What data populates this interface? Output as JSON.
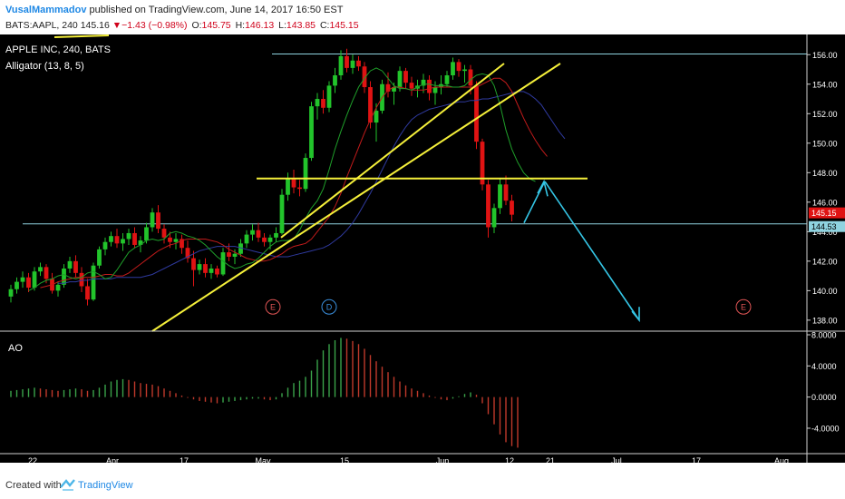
{
  "header": {
    "author": "VusalMammadov",
    "published": "published on TradingView.com, June 14, 2017 16:50 EST",
    "symbol_line": "BATS:AAPL, 240",
    "last": "145.16",
    "change": "▼−1.43 (−0.98%)",
    "o_label": "O:",
    "o_value": "145.75",
    "h_label": "H:",
    "h_value": "146.13",
    "l_label": "L:",
    "l_value": "143.85",
    "c_label": "C:",
    "c_value": "145.15"
  },
  "footer": {
    "created_with": "Created with",
    "brand": "TradingView"
  },
  "colors": {
    "up": "#22c42b",
    "down": "#e01313",
    "alligator_jaw": "#2f3a9f",
    "alligator_teeth": "#c21b1b",
    "alligator_lips": "#1f9e2a",
    "trendline": "#f5f03a",
    "hline": "#8fd3e0",
    "arrow": "#35c6e6",
    "ao_up": "#3aa34a",
    "ao_down": "#c0392b"
  },
  "chart_data": [
    {
      "type": "candlestick",
      "title": "APPLE INC, 240, BATS",
      "indicator": "Alligator (13, 8, 5)",
      "ylim": [
        137.5,
        157
      ],
      "y_ticks": [
        "156.00",
        "154.00",
        "152.00",
        "150.00",
        "148.00",
        "146.00",
        "144.00",
        "142.00",
        "140.00",
        "138.00"
      ],
      "price_labels": [
        {
          "value": 145.15,
          "text": "145.15"
        },
        {
          "value": 144.53,
          "text": "144.53"
        }
      ],
      "x_ticks": [
        "22",
        "Apr",
        "17",
        "May",
        "15",
        "Jun",
        "12",
        "21",
        "Jul",
        "17",
        "Aug"
      ],
      "events": [
        {
          "label": "E"
        },
        {
          "label": "D"
        },
        {
          "label": "E"
        }
      ],
      "candles": [
        [
          139.6,
          140.4,
          139.2,
          140.1
        ],
        [
          140.1,
          140.9,
          139.8,
          140.6
        ],
        [
          140.6,
          141.3,
          140.2,
          140.9
        ],
        [
          140.9,
          141.2,
          139.9,
          140.2
        ],
        [
          140.2,
          141.6,
          140.0,
          141.3
        ],
        [
          141.3,
          141.9,
          141.0,
          141.6
        ],
        [
          141.6,
          141.8,
          140.5,
          140.8
        ],
        [
          140.8,
          141.2,
          139.8,
          140.0
        ],
        [
          140.0,
          140.6,
          139.6,
          140.4
        ],
        [
          140.4,
          141.8,
          140.2,
          141.5
        ],
        [
          141.5,
          142.3,
          141.2,
          142.0
        ],
        [
          142.0,
          142.4,
          140.9,
          141.2
        ],
        [
          141.2,
          141.6,
          139.9,
          140.3
        ],
        [
          140.3,
          140.8,
          139.0,
          139.4
        ],
        [
          139.4,
          141.9,
          139.3,
          141.7
        ],
        [
          141.7,
          143.0,
          141.5,
          142.8
        ],
        [
          142.8,
          143.6,
          142.4,
          143.3
        ],
        [
          143.3,
          144.0,
          143.0,
          143.7
        ],
        [
          143.7,
          144.2,
          142.9,
          143.2
        ],
        [
          143.2,
          143.9,
          142.7,
          143.5
        ],
        [
          143.5,
          144.2,
          143.1,
          143.9
        ],
        [
          143.9,
          144.3,
          142.9,
          143.1
        ],
        [
          143.1,
          143.7,
          142.6,
          143.4
        ],
        [
          143.4,
          144.6,
          143.2,
          144.3
        ],
        [
          144.3,
          145.6,
          144.0,
          145.3
        ],
        [
          145.3,
          145.8,
          143.9,
          144.2
        ],
        [
          144.2,
          144.5,
          143.2,
          143.6
        ],
        [
          143.6,
          144.0,
          142.9,
          143.3
        ],
        [
          143.3,
          143.9,
          142.8,
          143.5
        ],
        [
          143.5,
          143.8,
          142.5,
          142.9
        ],
        [
          142.9,
          143.4,
          141.9,
          142.2
        ],
        [
          142.2,
          142.7,
          140.3,
          141.4
        ],
        [
          141.4,
          142.1,
          141.1,
          141.8
        ],
        [
          141.8,
          142.2,
          140.9,
          141.2
        ],
        [
          141.2,
          141.8,
          140.8,
          141.5
        ],
        [
          141.5,
          141.7,
          140.9,
          141.1
        ],
        [
          141.1,
          142.9,
          141.0,
          142.6
        ],
        [
          142.6,
          143.2,
          142.0,
          142.3
        ],
        [
          142.3,
          142.8,
          141.8,
          142.5
        ],
        [
          142.5,
          143.5,
          142.3,
          143.2
        ],
        [
          143.2,
          144.1,
          142.9,
          143.8
        ],
        [
          143.8,
          144.5,
          143.4,
          144.1
        ],
        [
          144.1,
          144.6,
          143.3,
          143.6
        ],
        [
          143.6,
          143.9,
          143.0,
          143.3
        ],
        [
          143.3,
          143.8,
          142.8,
          143.6
        ],
        [
          143.6,
          144.3,
          143.3,
          143.9
        ],
        [
          143.9,
          146.9,
          143.8,
          146.5
        ],
        [
          146.5,
          148.0,
          146.1,
          147.6
        ],
        [
          147.6,
          148.2,
          146.6,
          147.0
        ],
        [
          147.0,
          147.5,
          146.4,
          146.9
        ],
        [
          146.9,
          149.3,
          146.7,
          149.0
        ],
        [
          149.0,
          152.8,
          148.8,
          152.5
        ],
        [
          152.5,
          153.4,
          151.6,
          153.0
        ],
        [
          153.0,
          153.6,
          152.0,
          152.4
        ],
        [
          152.4,
          154.2,
          152.1,
          153.9
        ],
        [
          153.9,
          155.1,
          153.4,
          154.6
        ],
        [
          154.6,
          156.3,
          154.3,
          155.9
        ],
        [
          155.9,
          156.4,
          154.8,
          155.1
        ],
        [
          155.1,
          156.0,
          154.7,
          155.6
        ],
        [
          155.6,
          155.9,
          154.9,
          155.2
        ],
        [
          155.2,
          155.5,
          153.4,
          153.8
        ],
        [
          153.8,
          154.2,
          151.0,
          151.4
        ],
        [
          151.4,
          152.7,
          150.1,
          152.2
        ],
        [
          152.2,
          154.3,
          152.0,
          154.0
        ],
        [
          154.0,
          154.8,
          153.1,
          153.5
        ],
        [
          153.5,
          154.1,
          152.6,
          153.8
        ],
        [
          153.8,
          155.2,
          153.5,
          154.9
        ],
        [
          154.9,
          155.1,
          153.7,
          154.1
        ],
        [
          154.1,
          154.5,
          153.2,
          153.7
        ],
        [
          153.7,
          154.3,
          153.1,
          153.9
        ],
        [
          153.9,
          154.7,
          153.4,
          154.3
        ],
        [
          154.3,
          154.6,
          152.9,
          153.4
        ],
        [
          153.4,
          154.2,
          152.6,
          153.8
        ],
        [
          153.8,
          154.6,
          153.3,
          154.0
        ],
        [
          154.0,
          154.9,
          153.8,
          154.6
        ],
        [
          154.6,
          155.8,
          154.3,
          155.5
        ],
        [
          155.5,
          155.7,
          154.5,
          154.9
        ],
        [
          154.9,
          155.3,
          154.1,
          155.0
        ],
        [
          155.0,
          155.3,
          153.3,
          153.9
        ],
        [
          153.9,
          154.2,
          149.6,
          150.1
        ],
        [
          150.1,
          150.3,
          146.8,
          147.2
        ],
        [
          147.2,
          147.5,
          143.6,
          144.3
        ],
        [
          144.3,
          145.9,
          143.9,
          145.6
        ],
        [
          145.6,
          147.6,
          145.2,
          147.2
        ],
        [
          147.2,
          147.8,
          145.8,
          146.1
        ],
        [
          146.1,
          146.5,
          144.7,
          145.15
        ]
      ],
      "alligator_lips": [
        140.0,
        140.2,
        140.5,
        140.7,
        140.8,
        141.0,
        141.1,
        140.9,
        140.8,
        140.9,
        141.2,
        141.3,
        141.1,
        140.8,
        140.9,
        141.4,
        142.0,
        142.6,
        142.9,
        143.1,
        143.4,
        143.5,
        143.4,
        143.5,
        143.9,
        144.0,
        143.9,
        143.7,
        143.6,
        143.4,
        143.1,
        142.7,
        142.3,
        142.0,
        141.7,
        141.5,
        141.6,
        141.8,
        141.9,
        142.2,
        142.6,
        143.0,
        143.3,
        143.4,
        143.4,
        143.5,
        144.1,
        144.9,
        145.6,
        146.1,
        146.9,
        148.2,
        149.6,
        150.8,
        151.9,
        152.9,
        153.8,
        154.4,
        154.9,
        155.1,
        154.9,
        154.4,
        153.9,
        153.7,
        153.7,
        153.6,
        153.8,
        154.0,
        154.0,
        153.9,
        153.9,
        153.9,
        153.8,
        153.8,
        153.9,
        154.3,
        154.6,
        154.7,
        154.6,
        153.9,
        152.6,
        150.9,
        149.6,
        148.7,
        148.0,
        147.6,
        147.4
      ],
      "alligator_teeth": [
        140.2,
        140.3,
        140.4,
        140.6,
        140.7,
        140.8,
        140.9,
        140.9,
        140.9,
        140.9,
        141.0,
        141.1,
        141.1,
        141.0,
        141.0,
        141.2,
        141.5,
        141.8,
        142.1,
        142.4,
        142.7,
        142.9,
        143.1,
        143.2,
        143.4,
        143.5,
        143.5,
        143.5,
        143.5,
        143.4,
        143.3,
        143.1,
        142.8,
        142.6,
        142.4,
        142.2,
        142.1,
        142.0,
        142.0,
        142.1,
        142.3,
        142.5,
        142.8,
        143.0,
        143.1,
        143.2,
        143.5,
        144.0,
        144.5,
        145.0,
        145.7,
        146.6,
        147.7,
        148.7,
        149.7,
        150.7,
        151.6,
        152.4,
        153.1,
        153.6,
        153.8,
        153.8,
        153.7,
        153.6,
        153.6,
        153.6,
        153.7,
        153.8,
        153.8,
        153.8,
        153.8,
        153.8,
        153.8,
        153.8,
        153.8,
        154.0,
        154.2,
        154.4,
        154.4,
        154.1,
        153.5,
        152.6,
        151.7,
        150.9,
        150.2,
        149.6,
        149.1
      ],
      "alligator_jaw": [
        140.5,
        140.5,
        140.6,
        140.6,
        140.7,
        140.7,
        140.8,
        140.8,
        140.8,
        140.8,
        140.9,
        140.9,
        140.9,
        140.9,
        140.9,
        141.0,
        141.1,
        141.3,
        141.5,
        141.7,
        141.9,
        142.1,
        142.3,
        142.5,
        142.7,
        142.8,
        142.9,
        143.0,
        143.0,
        143.0,
        143.0,
        142.9,
        142.8,
        142.7,
        142.6,
        142.5,
        142.4,
        142.3,
        142.3,
        142.3,
        142.4,
        142.5,
        142.6,
        142.7,
        142.8,
        142.9,
        143.1,
        143.4,
        143.7,
        144.1,
        144.6,
        145.2,
        145.9,
        146.6,
        147.4,
        148.2,
        149.0,
        149.8,
        150.5,
        151.1,
        151.6,
        151.9,
        152.1,
        152.3,
        152.4,
        152.5,
        152.6,
        152.7,
        152.8,
        152.8,
        152.9,
        152.9,
        153.0,
        153.0,
        153.1,
        153.2,
        153.3,
        153.4,
        153.5,
        153.5,
        153.3,
        153.0,
        152.6,
        152.0,
        151.4,
        150.8,
        150.3
      ]
    },
    {
      "type": "bar",
      "title": "AO",
      "ylim": [
        -6.8,
        8.0
      ],
      "y_ticks": [
        "8.0000",
        "4.0000",
        "0.0000",
        "-4.0000"
      ],
      "values": [
        0.8,
        0.9,
        1.0,
        1.1,
        1.2,
        1.1,
        1.0,
        0.9,
        0.8,
        0.9,
        1.0,
        1.1,
        1.0,
        0.8,
        0.9,
        1.2,
        1.6,
        2.0,
        2.2,
        2.3,
        2.2,
        2.0,
        1.8,
        1.7,
        1.6,
        1.4,
        1.1,
        0.8,
        0.5,
        0.2,
        -0.1,
        -0.3,
        -0.5,
        -0.6,
        -0.7,
        -0.8,
        -0.7,
        -0.6,
        -0.5,
        -0.4,
        -0.3,
        -0.2,
        -0.2,
        -0.3,
        -0.4,
        -0.3,
        0.5,
        1.2,
        1.8,
        2.1,
        2.6,
        3.4,
        4.8,
        6.0,
        6.8,
        7.3,
        7.6,
        7.5,
        7.2,
        6.8,
        6.2,
        5.4,
        4.6,
        3.9,
        3.2,
        2.6,
        2.0,
        1.5,
        1.1,
        0.8,
        0.5,
        0.2,
        -0.1,
        -0.3,
        -0.4,
        -0.2,
        0.1,
        0.4,
        0.6,
        0.3,
        -0.8,
        -2.2,
        -3.5,
        -4.8,
        -5.8,
        -6.3,
        -6.5
      ]
    }
  ]
}
